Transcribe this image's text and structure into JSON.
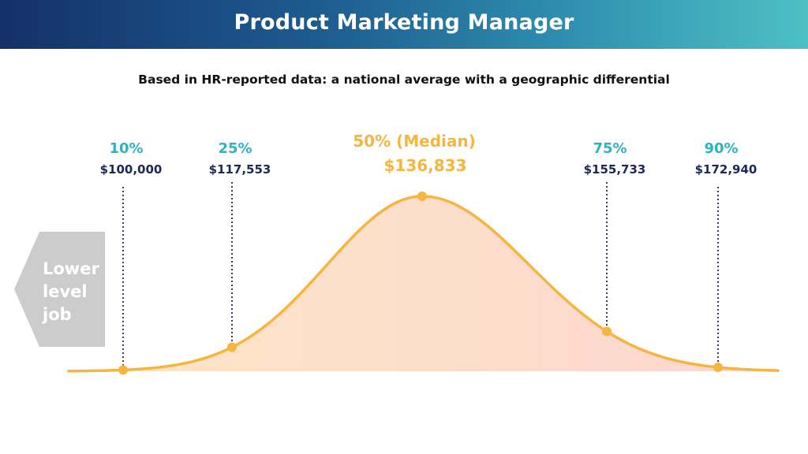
{
  "title": "Product Marketing Manager",
  "subtitle": "Based in HR-reported data: a national average with a geographic differential",
  "side_label": {
    "lines": [
      "Lower",
      "level",
      "job"
    ],
    "color": "#cccccc"
  },
  "colors": {
    "accent": "#f5b53f",
    "teal": "#2db3c3",
    "navy": "#1b2a55",
    "fill_left": "#fde6c6",
    "fill_right": "#fdd6d0"
  },
  "chart_data": {
    "type": "area",
    "title": "",
    "xlabel": "",
    "ylabel": "",
    "distribution": "bell curve",
    "points": [
      {
        "percentile": "10%",
        "value": "$100,000",
        "x": 100000
      },
      {
        "percentile": "25%",
        "value": "$117,553",
        "x": 117553
      },
      {
        "percentile": "50% (Median)",
        "value": "$136,833",
        "x": 136833
      },
      {
        "percentile": "75%",
        "value": "$155,733",
        "x": 155733
      },
      {
        "percentile": "90%",
        "value": "$172,940",
        "x": 172940
      }
    ]
  }
}
